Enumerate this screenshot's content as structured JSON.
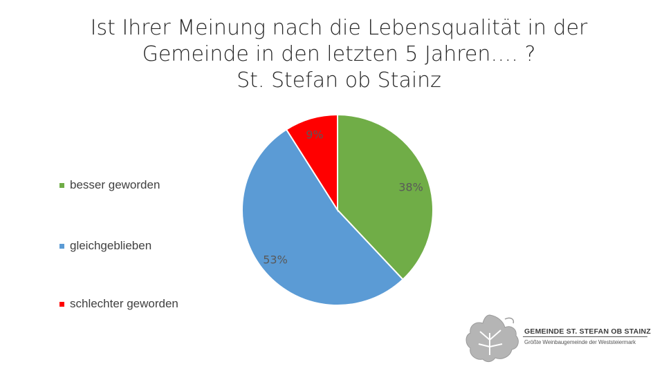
{
  "chart_data": {
    "type": "pie",
    "title_lines": [
      "Ist Ihrer Meinung nach die Lebensqualität in der",
      "Gemeinde in den letzten 5 Jahren…. ?",
      "St. Stefan ob Stainz"
    ],
    "slices": [
      {
        "name": "besser geworden",
        "value": 38,
        "label": "38%",
        "color": "#70ad47"
      },
      {
        "name": "gleichgeblieben",
        "value": 53,
        "label": "53%",
        "color": "#5b9bd5"
      },
      {
        "name": "schlechter geworden",
        "value": 9,
        "label": "9%",
        "color": "#ff0000"
      }
    ],
    "start_angle_deg": 0,
    "direction": "clockwise",
    "legend_position": "left"
  },
  "logo": {
    "icon": "vine-leaf-icon",
    "title": "GEMEINDE ST. STEFAN OB STAINZ",
    "subtitle": "Größte Weinbaugemeinde der Weststeiermark"
  }
}
